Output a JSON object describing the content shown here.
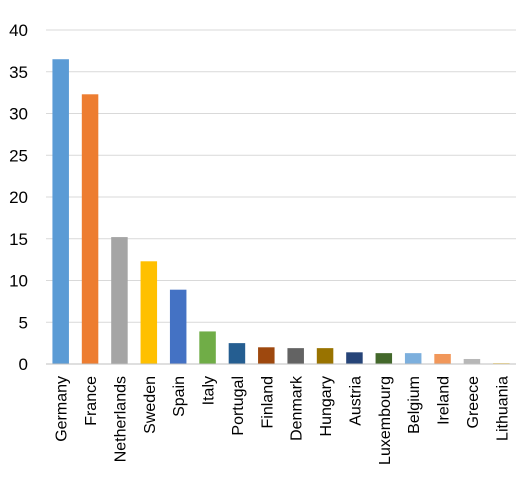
{
  "chart_data": {
    "type": "bar",
    "title": "",
    "xlabel": "",
    "ylabel": "",
    "ylim": [
      0,
      40
    ],
    "y_ticks": [
      "0",
      "5",
      "10",
      "15",
      "20",
      "25",
      "30",
      "35",
      "40"
    ],
    "grid": true,
    "legend": "none",
    "categories": [
      "Germany",
      "France",
      "Netherlands",
      "Sweden",
      "Spain",
      "Italy",
      "Portugal",
      "Finland",
      "Denmark",
      "Hungary",
      "Austria",
      "Luxembourg",
      "Belgium",
      "Ireland",
      "Greece",
      "Lithuania"
    ],
    "values": [
      36.5,
      32.3,
      15.2,
      12.3,
      8.9,
      3.9,
      2.5,
      2.0,
      1.9,
      1.9,
      1.4,
      1.3,
      1.3,
      1.2,
      0.6,
      0.1
    ],
    "colors": [
      "#5b9bd5",
      "#ed7d31",
      "#a5a5a5",
      "#ffc000",
      "#4472c4",
      "#70ad47",
      "#255e91",
      "#9e480e",
      "#636363",
      "#997300",
      "#264478",
      "#43682b",
      "#7cafdd",
      "#f1975a",
      "#b7b7b7",
      "#ffcd33"
    ]
  }
}
